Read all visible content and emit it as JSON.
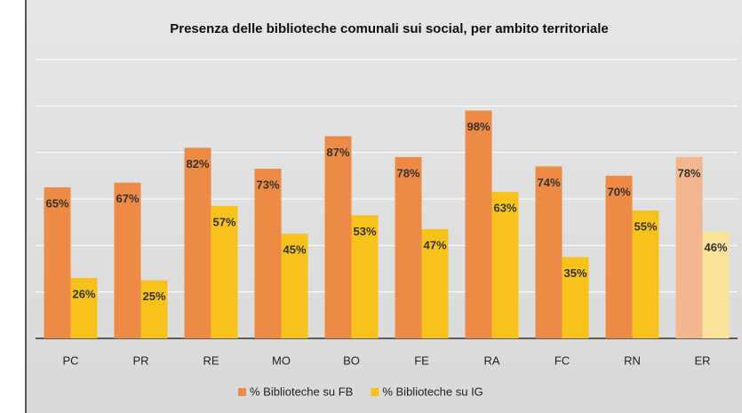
{
  "chart_data": {
    "type": "bar",
    "title": "Presenza delle biblioteche comunali sui social, per ambito territoriale",
    "categories": [
      "PC",
      "PR",
      "RE",
      "MO",
      "BO",
      "FE",
      "RA",
      "FC",
      "RN",
      "ER"
    ],
    "series": [
      {
        "name": "% Biblioteche su FB",
        "color": "#ED8A45",
        "point_colors": [
          "#ED8A45",
          "#ED8A45",
          "#ED8A45",
          "#ED8A45",
          "#ED8A45",
          "#ED8A45",
          "#ED8A45",
          "#ED8A45",
          "#ED8A45",
          "#F4B68E"
        ],
        "values": [
          65,
          67,
          82,
          73,
          87,
          78,
          98,
          74,
          70,
          78
        ],
        "value_labels": [
          "65%",
          "67%",
          "82%",
          "73%",
          "87%",
          "78%",
          "98%",
          "74%",
          "70%",
          "78%"
        ]
      },
      {
        "name": "% Biblioteche su IG",
        "color": "#F8C21C",
        "point_colors": [
          "#F8C21C",
          "#F8C21C",
          "#F8C21C",
          "#F8C21C",
          "#F8C21C",
          "#F8C21C",
          "#F8C21C",
          "#F8C21C",
          "#F8C21C",
          "#F9E39A"
        ],
        "values": [
          26,
          25,
          57,
          45,
          53,
          47,
          63,
          35,
          55,
          46
        ],
        "value_labels": [
          "26%",
          "25%",
          "57%",
          "45%",
          "53%",
          "47%",
          "63%",
          "35%",
          "55%",
          "46%"
        ]
      }
    ],
    "ylim": [
      0,
      120
    ],
    "yticks": [
      0,
      20,
      40,
      60,
      80,
      100,
      120
    ],
    "grid": true,
    "legend": "bottom"
  }
}
